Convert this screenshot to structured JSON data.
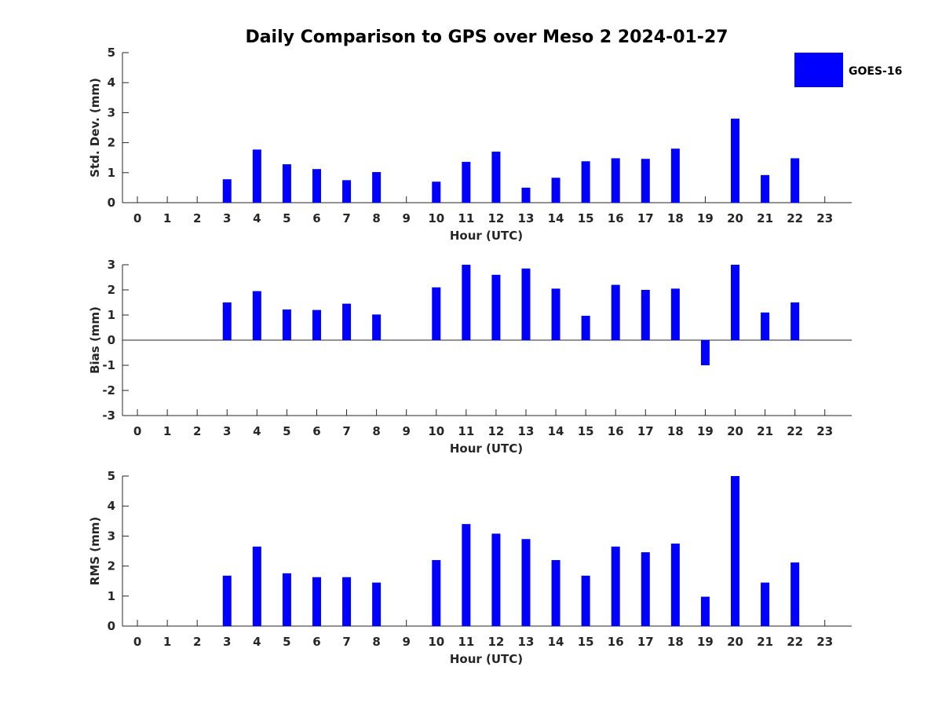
{
  "figure": {
    "title": "Daily Comparison to GPS over Meso 2 2024-01-27"
  },
  "legend": {
    "label": "GOES-16",
    "color": "#0000FF",
    "placement": "top-right"
  },
  "chart_data": [
    {
      "type": "bar",
      "xlabel": "Hour (UTC)",
      "ylabel": "Std. Dev. (mm)",
      "ylim": [
        0,
        5
      ],
      "yticks": [
        0,
        1,
        2,
        3,
        4,
        5
      ],
      "x": [
        0,
        1,
        2,
        3,
        4,
        5,
        6,
        7,
        8,
        9,
        10,
        11,
        12,
        13,
        14,
        15,
        16,
        17,
        18,
        19,
        20,
        21,
        22,
        23
      ],
      "xticklabels": [
        "0",
        "1",
        "2",
        "3",
        "4",
        "5",
        "6",
        "7",
        "8",
        "9",
        "10",
        "11",
        "12",
        "13",
        "14",
        "15",
        "16",
        "17",
        "18",
        "19",
        "20",
        "21",
        "22",
        "23"
      ],
      "series": [
        {
          "name": "GOES-16",
          "color": "#0000FF",
          "values": [
            null,
            null,
            null,
            0.78,
            1.77,
            1.28,
            1.12,
            0.75,
            1.02,
            null,
            0.7,
            1.36,
            1.7,
            0.5,
            0.83,
            1.38,
            1.48,
            1.46,
            1.8,
            null,
            2.8,
            0.92,
            1.48,
            null
          ]
        }
      ]
    },
    {
      "type": "bar",
      "xlabel": "Hour (UTC)",
      "ylabel": "Bias (mm)",
      "ylim": [
        -3,
        3
      ],
      "yticks": [
        -3,
        -2,
        -1,
        0,
        1,
        2,
        3
      ],
      "x": [
        0,
        1,
        2,
        3,
        4,
        5,
        6,
        7,
        8,
        9,
        10,
        11,
        12,
        13,
        14,
        15,
        16,
        17,
        18,
        19,
        20,
        21,
        22,
        23
      ],
      "xticklabels": [
        "0",
        "1",
        "2",
        "3",
        "4",
        "5",
        "6",
        "7",
        "8",
        "9",
        "10",
        "11",
        "12",
        "13",
        "14",
        "15",
        "16",
        "17",
        "18",
        "19",
        "20",
        "21",
        "22",
        "23"
      ],
      "series": [
        {
          "name": "GOES-16",
          "color": "#0000FF",
          "values": [
            null,
            null,
            null,
            1.5,
            1.95,
            1.22,
            1.2,
            1.45,
            1.02,
            null,
            2.1,
            3.0,
            2.6,
            2.85,
            2.05,
            0.97,
            2.2,
            2.0,
            2.05,
            -1.0,
            3.0,
            1.1,
            1.5,
            null
          ]
        }
      ]
    },
    {
      "type": "bar",
      "xlabel": "Hour (UTC)",
      "ylabel": "RMS (mm)",
      "ylim": [
        0,
        5
      ],
      "yticks": [
        0,
        1,
        2,
        3,
        4,
        5
      ],
      "x": [
        0,
        1,
        2,
        3,
        4,
        5,
        6,
        7,
        8,
        9,
        10,
        11,
        12,
        13,
        14,
        15,
        16,
        17,
        18,
        19,
        20,
        21,
        22,
        23
      ],
      "xticklabels": [
        "0",
        "1",
        "2",
        "3",
        "4",
        "5",
        "6",
        "7",
        "8",
        "9",
        "10",
        "11",
        "12",
        "13",
        "14",
        "15",
        "16",
        "17",
        "18",
        "19",
        "20",
        "21",
        "22",
        "23"
      ],
      "series": [
        {
          "name": "GOES-16",
          "color": "#0000FF",
          "values": [
            null,
            null,
            null,
            1.68,
            2.65,
            1.76,
            1.63,
            1.63,
            1.45,
            null,
            2.2,
            3.4,
            3.08,
            2.9,
            2.2,
            1.68,
            2.65,
            2.46,
            2.75,
            0.98,
            5.0,
            1.45,
            2.12,
            null
          ]
        }
      ]
    }
  ]
}
